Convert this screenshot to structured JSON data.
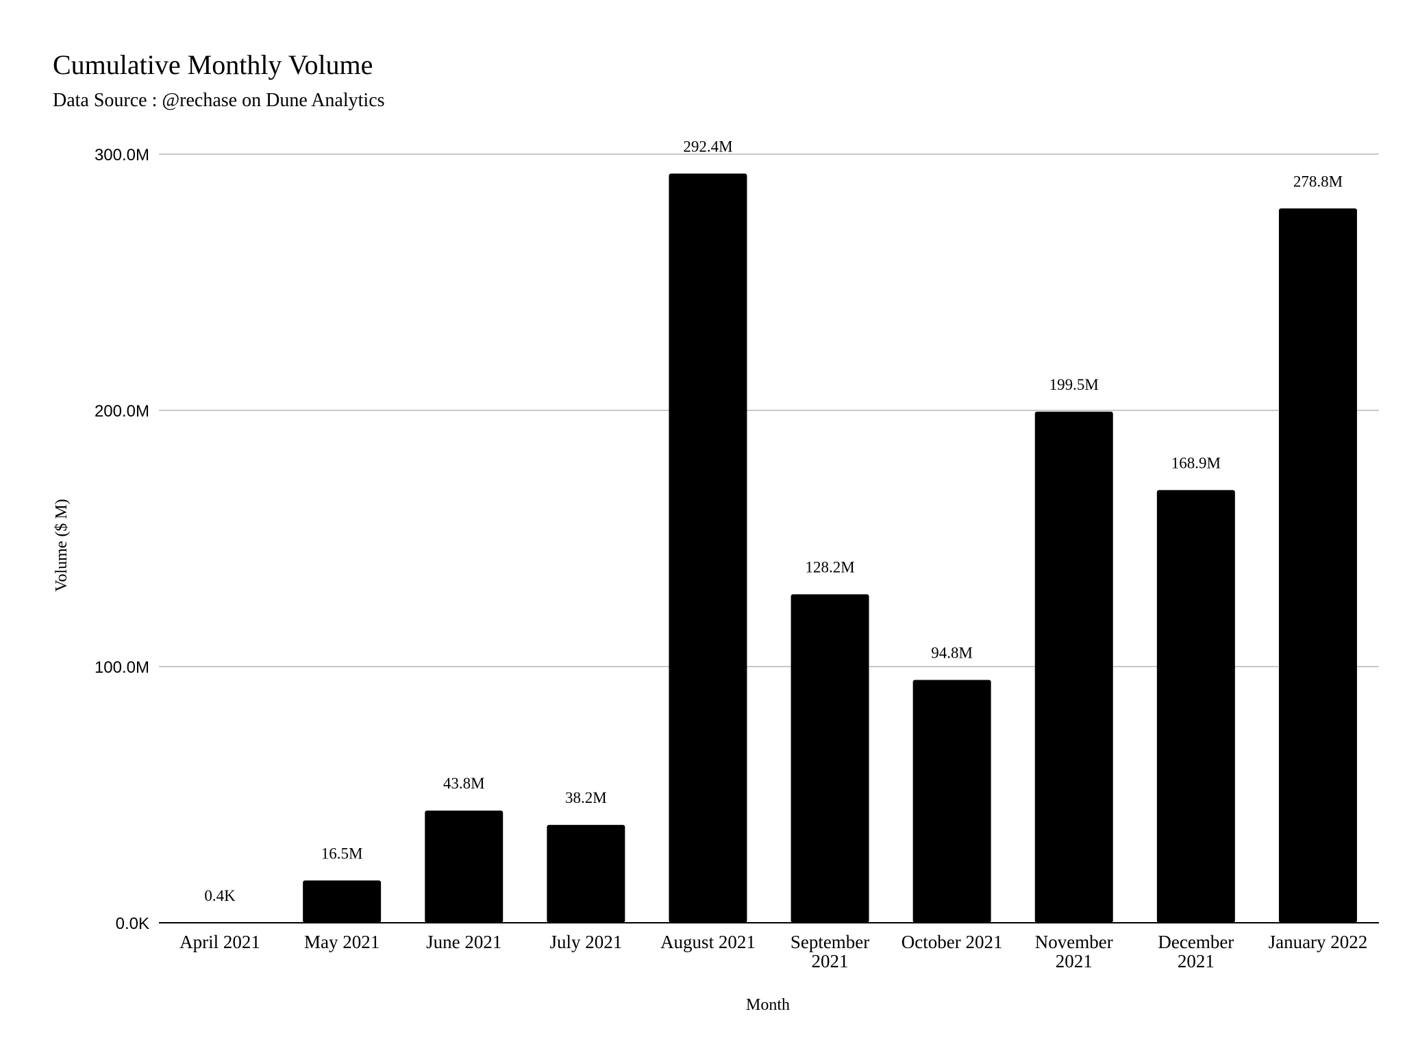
{
  "chart_data": {
    "type": "bar",
    "title": "Cumulative Monthly Volume",
    "subtitle": "Data Source : @rechase on Dune Analytics",
    "xlabel": "Month",
    "ylabel": "Volume ($ M)",
    "categories": [
      [
        "April 2021"
      ],
      [
        "May 2021"
      ],
      [
        "June 2021"
      ],
      [
        "July 2021"
      ],
      [
        "August 2021"
      ],
      [
        "September",
        "2021"
      ],
      [
        "October 2021"
      ],
      [
        "November",
        "2021"
      ],
      [
        "December",
        "2021"
      ],
      [
        "January 2022"
      ]
    ],
    "values": [
      0.0004,
      16.5,
      43.8,
      38.2,
      292.4,
      128.2,
      94.8,
      199.5,
      168.9,
      278.8
    ],
    "data_labels": [
      "0.4K",
      "16.5M",
      "43.8M",
      "38.2M",
      "292.4M",
      "128.2M",
      "94.8M",
      "199.5M",
      "168.9M",
      "278.8M"
    ],
    "ylim": [
      0,
      300
    ],
    "yticks": [
      {
        "value": 0,
        "label": "0.0K"
      },
      {
        "value": 100,
        "label": "100.0M"
      },
      {
        "value": 200,
        "label": "200.0M"
      },
      {
        "value": 300,
        "label": "300.0M"
      }
    ],
    "grid": true,
    "legend": "none",
    "colors": {
      "bar": "#000000",
      "grid": "#c8c8c8",
      "axis": "#000000",
      "text": "#000000"
    }
  }
}
